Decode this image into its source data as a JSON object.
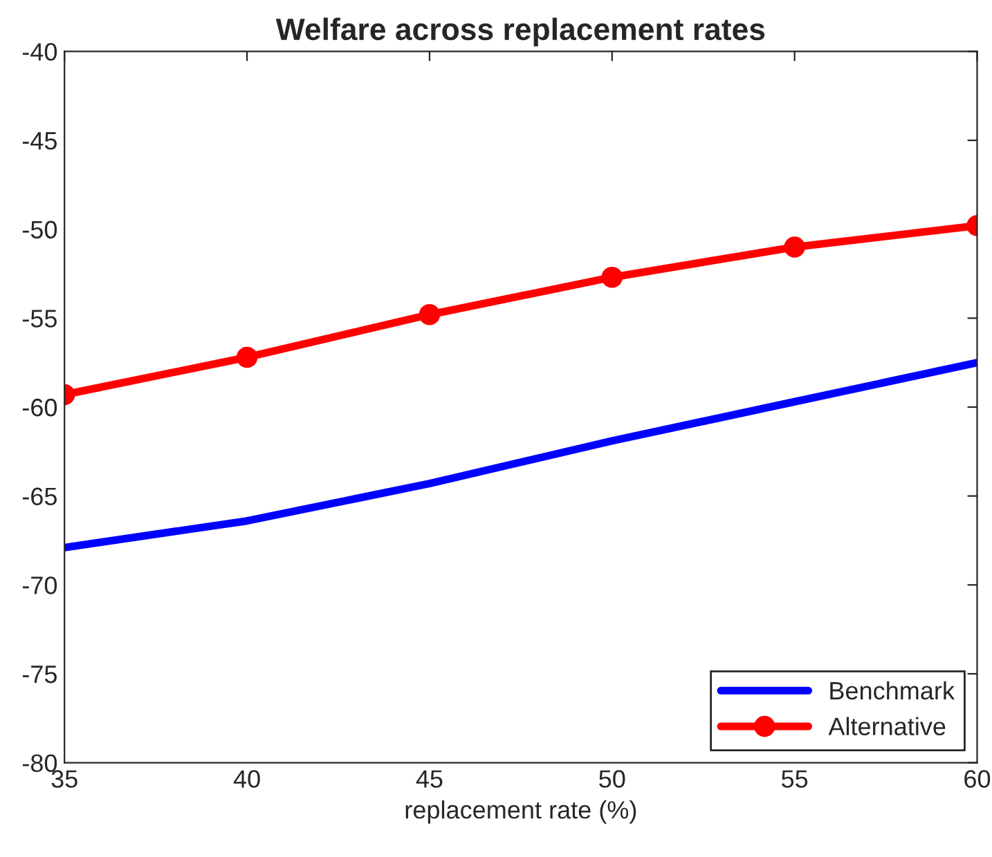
{
  "chart_data": {
    "type": "line",
    "title": "Welfare across replacement rates",
    "xlabel": "replacement rate (%)",
    "x": [
      35,
      40,
      45,
      50,
      55,
      60
    ],
    "series": [
      {
        "name": "Benchmark",
        "color": "#0000ff",
        "values": [
          -67.9,
          -66.4,
          -64.3,
          -61.9,
          -59.7,
          -57.5
        ],
        "marker": "none"
      },
      {
        "name": "Alternative",
        "color": "#ff0000",
        "values": [
          -59.3,
          -57.2,
          -54.8,
          -52.7,
          -51.0,
          -49.8
        ],
        "marker": "circle"
      }
    ],
    "xlim": [
      35,
      60
    ],
    "xticks": [
      35,
      40,
      45,
      50,
      55,
      60
    ],
    "ylim": [
      -80,
      -40
    ],
    "yticks": [
      -80,
      -75,
      -70,
      -65,
      -60,
      -55,
      -50,
      -45,
      -40
    ],
    "grid": false,
    "legend": "bottom right",
    "line_style": "solid"
  }
}
